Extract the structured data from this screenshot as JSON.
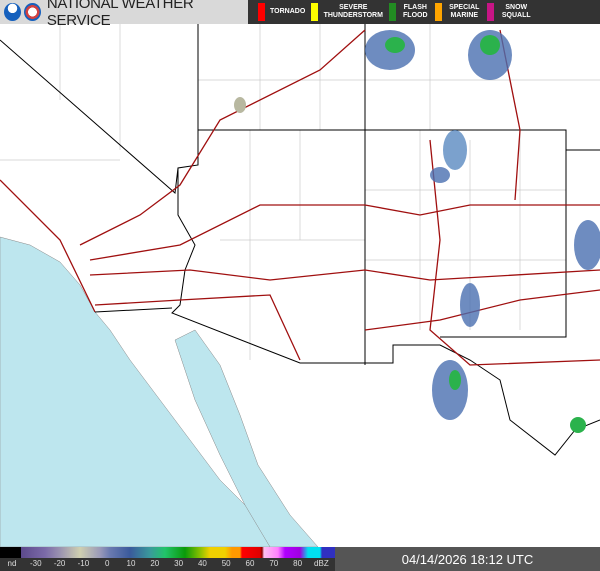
{
  "header": {
    "title": "NATIONAL WEATHER SERVICE",
    "logos": [
      "noaa-logo",
      "nws-logo"
    ]
  },
  "warnings": [
    {
      "label": "TORNADO",
      "color": "#ff0000"
    },
    {
      "label": "SEVERE THUNDERSTORM",
      "color": "#ffff00"
    },
    {
      "label": "FLASH FLOOD",
      "color": "#228b22"
    },
    {
      "label": "SPECIAL MARINE",
      "color": "#ffa500"
    },
    {
      "label": "SNOW SQUALL",
      "color": "#c71585"
    }
  ],
  "legend": {
    "ticks": [
      "nd",
      "-30",
      "-20",
      "-10",
      "0",
      "10",
      "20",
      "30",
      "40",
      "50",
      "60",
      "70",
      "80",
      "dBZ"
    ]
  },
  "timestamp": "04/14/2026 18:12 UTC",
  "colors": {
    "ocean": "#bde6ee",
    "borders": "#000000",
    "roads": "#a01010",
    "counties": "#cccccc"
  }
}
